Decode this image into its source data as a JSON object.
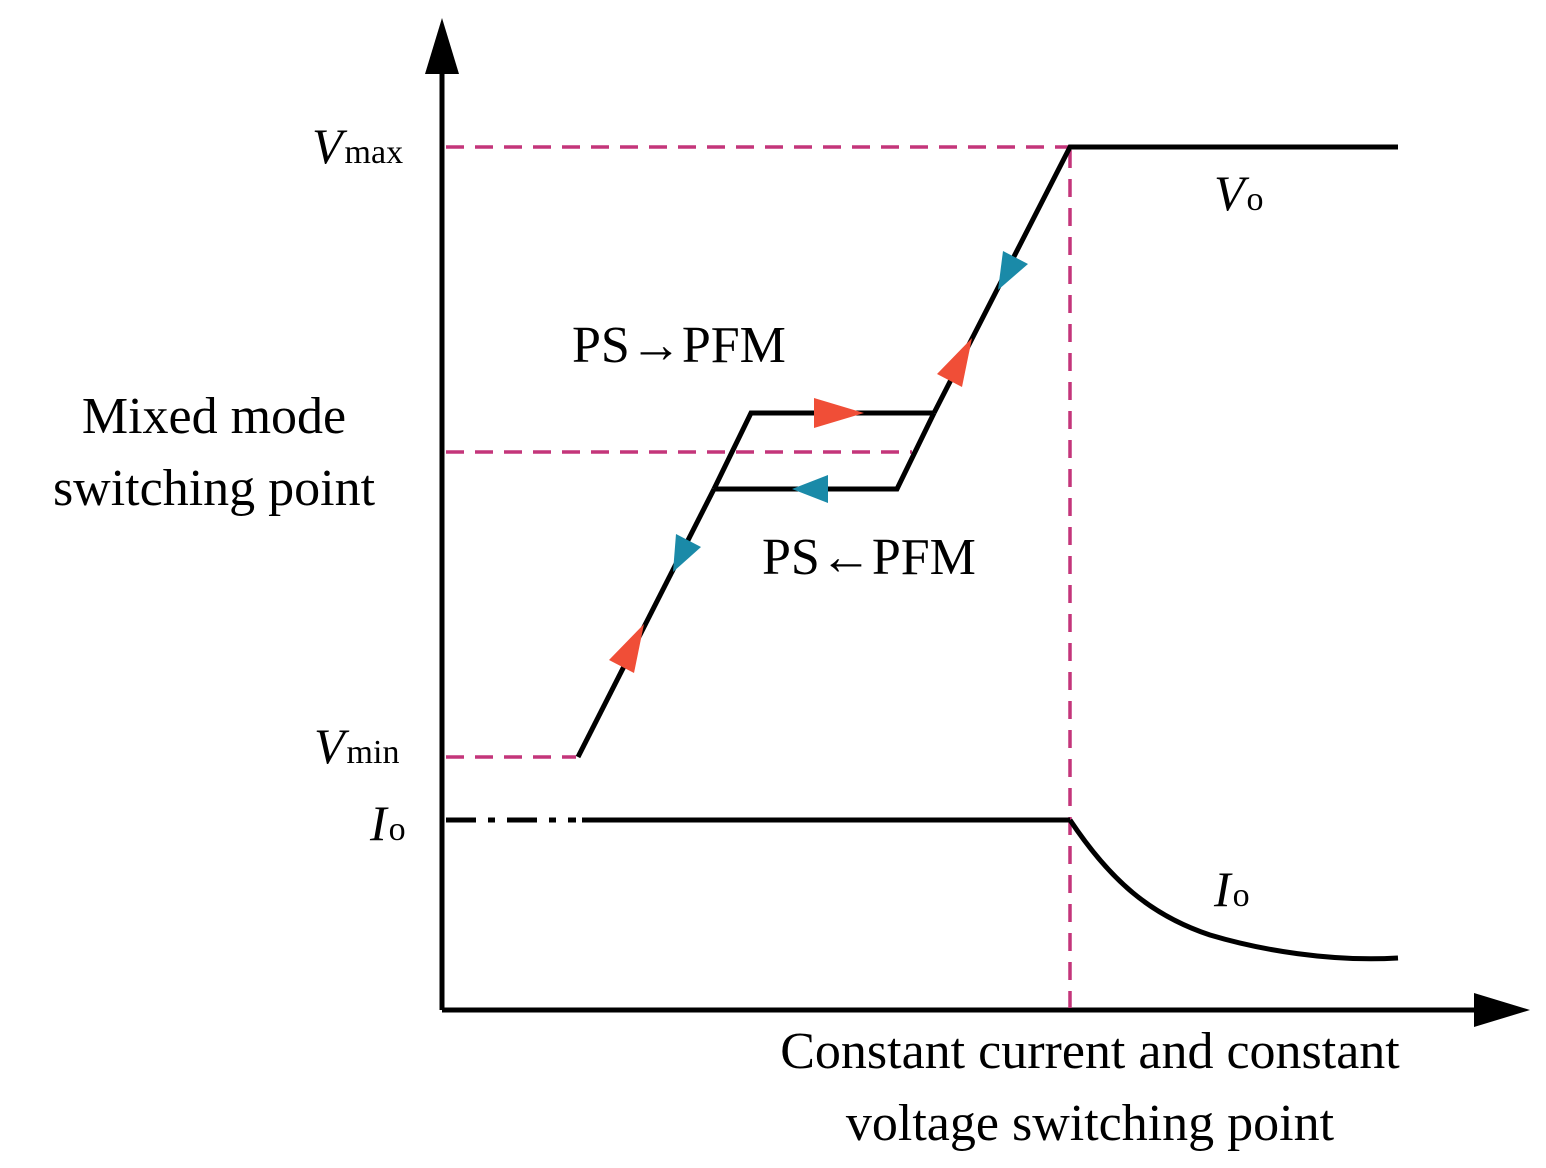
{
  "labels": {
    "vmax_main": "V",
    "vmax_sub": "max",
    "vmin_main": "V",
    "vmin_sub": "min",
    "io_axis_main": "I",
    "io_axis_sub": "o",
    "vo_curve_main": "V",
    "vo_curve_sub": "o",
    "io_curve_main": "I",
    "io_curve_sub": "o",
    "mixed_mode_line1": "Mixed mode",
    "mixed_mode_line2": "switching point",
    "ps_to_pfm": "PS→PFM",
    "ps_from_pfm": "PS←PFM",
    "cc_cv_line1": "Constant current and constant",
    "cc_cv_line2": "voltage switching point"
  },
  "colors": {
    "curve": "#000000",
    "dashed_guide": "#c4357a",
    "forward_arrow": "#f04e37",
    "reverse_arrow": "#1a8aa8"
  }
}
